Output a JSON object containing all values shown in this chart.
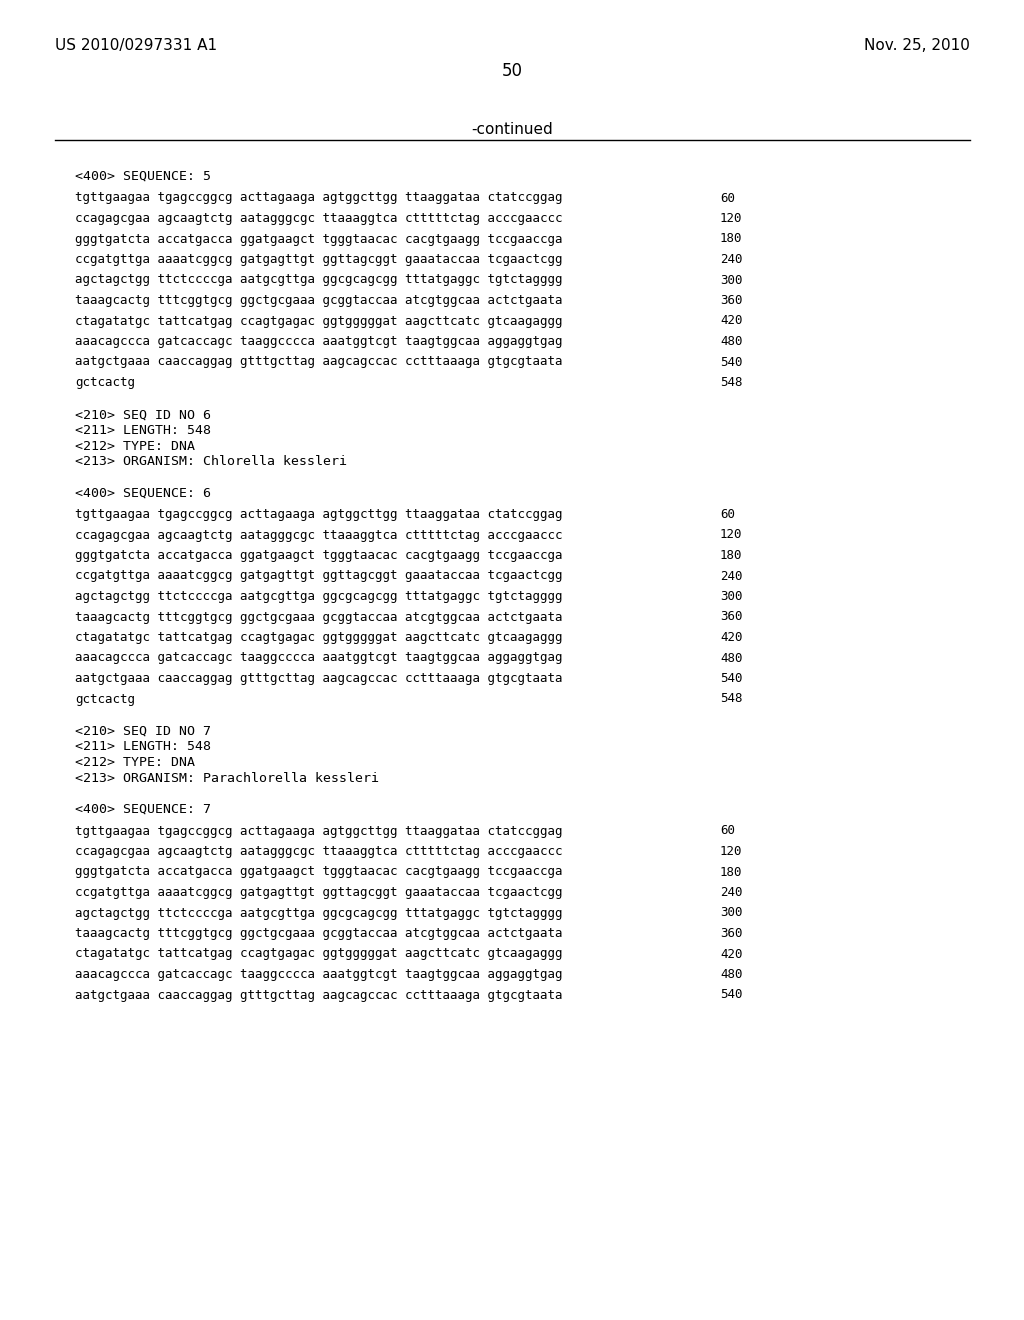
{
  "header_left": "US 2010/0297331 A1",
  "header_right": "Nov. 25, 2010",
  "page_number": "50",
  "continued_text": "-continued",
  "background_color": "#ffffff",
  "text_color": "#000000",
  "sections": [
    {
      "type": "sequence_label",
      "text": "<400> SEQUENCE: 5"
    },
    {
      "type": "sequence_data",
      "lines": [
        {
          "seq": "tgttgaagaa tgagccggcg acttagaaga agtggcttgg ttaaggataa ctatccggag",
          "num": "60"
        },
        {
          "seq": "ccagagcgaa agcaagtctg aatagggcgc ttaaaggtca ctttttctag acccgaaccc",
          "num": "120"
        },
        {
          "seq": "gggtgatcta accatgacca ggatgaagct tgggtaacac cacgtgaagg tccgaaccga",
          "num": "180"
        },
        {
          "seq": "ccgatgttga aaaatcggcg gatgagttgt ggttagcggt gaaataccaa tcgaactcgg",
          "num": "240"
        },
        {
          "seq": "agctagctgg ttctccccga aatgcgttga ggcgcagcgg tttatgaggc tgtctagggg",
          "num": "300"
        },
        {
          "seq": "taaagcactg tttcggtgcg ggctgcgaaa gcggtaccaa atcgtggcaa actctgaata",
          "num": "360"
        },
        {
          "seq": "ctagatatgc tattcatgag ccagtgagac ggtgggggat aagcttcatc gtcaagaggg",
          "num": "420"
        },
        {
          "seq": "aaacagccca gatcaccagc taaggcccca aaatggtcgt taagtggcaa aggaggtgag",
          "num": "480"
        },
        {
          "seq": "aatgctgaaa caaccaggag gtttgcttag aagcagccac cctttaaaga gtgcgtaata",
          "num": "540"
        },
        {
          "seq": "gctcactg",
          "num": "548"
        }
      ]
    },
    {
      "type": "metadata",
      "lines": [
        "<210> SEQ ID NO 6",
        "<211> LENGTH: 548",
        "<212> TYPE: DNA",
        "<213> ORGANISM: Chlorella kessleri"
      ]
    },
    {
      "type": "sequence_label",
      "text": "<400> SEQUENCE: 6"
    },
    {
      "type": "sequence_data",
      "lines": [
        {
          "seq": "tgttgaagaa tgagccggcg acttagaaga agtggcttgg ttaaggataa ctatccggag",
          "num": "60"
        },
        {
          "seq": "ccagagcgaa agcaagtctg aatagggcgc ttaaaggtca ctttttctag acccgaaccc",
          "num": "120"
        },
        {
          "seq": "gggtgatcta accatgacca ggatgaagct tgggtaacac cacgtgaagg tccgaaccga",
          "num": "180"
        },
        {
          "seq": "ccgatgttga aaaatcggcg gatgagttgt ggttagcggt gaaataccaa tcgaactcgg",
          "num": "240"
        },
        {
          "seq": "agctagctgg ttctccccga aatgcgttga ggcgcagcgg tttatgaggc tgtctagggg",
          "num": "300"
        },
        {
          "seq": "taaagcactg tttcggtgcg ggctgcgaaa gcggtaccaa atcgtggcaa actctgaata",
          "num": "360"
        },
        {
          "seq": "ctagatatgc tattcatgag ccagtgagac ggtgggggat aagcttcatc gtcaagaggg",
          "num": "420"
        },
        {
          "seq": "aaacagccca gatcaccagc taaggcccca aaatggtcgt taagtggcaa aggaggtgag",
          "num": "480"
        },
        {
          "seq": "aatgctgaaa caaccaggag gtttgcttag aagcagccac cctttaaaga gtgcgtaata",
          "num": "540"
        },
        {
          "seq": "gctcactg",
          "num": "548"
        }
      ]
    },
    {
      "type": "metadata",
      "lines": [
        "<210> SEQ ID NO 7",
        "<211> LENGTH: 548",
        "<212> TYPE: DNA",
        "<213> ORGANISM: Parachlorella kessleri"
      ]
    },
    {
      "type": "sequence_label",
      "text": "<400> SEQUENCE: 7"
    },
    {
      "type": "sequence_data",
      "lines": [
        {
          "seq": "tgttgaagaa tgagccggcg acttagaaga agtggcttgg ttaaggataa ctatccggag",
          "num": "60"
        },
        {
          "seq": "ccagagcgaa agcaagtctg aatagggcgc ttaaaggtca ctttttctag acccgaaccc",
          "num": "120"
        },
        {
          "seq": "gggtgatcta accatgacca ggatgaagct tgggtaacac cacgtgaagg tccgaaccga",
          "num": "180"
        },
        {
          "seq": "ccgatgttga aaaatcggcg gatgagttgt ggttagcggt gaaataccaa tcgaactcgg",
          "num": "240"
        },
        {
          "seq": "agctagctgg ttctccccga aatgcgttga ggcgcagcgg tttatgaggc tgtctagggg",
          "num": "300"
        },
        {
          "seq": "taaagcactg tttcggtgcg ggctgcgaaa gcggtaccaa atcgtggcaa actctgaata",
          "num": "360"
        },
        {
          "seq": "ctagatatgc tattcatgag ccagtgagac ggtgggggat aagcttcatc gtcaagaggg",
          "num": "420"
        },
        {
          "seq": "aaacagccca gatcaccagc taaggcccca aaatggtcgt taagtggcaa aggaggtgag",
          "num": "480"
        },
        {
          "seq": "aatgctgaaa caaccaggag gtttgcttag aagcagccac cctttaaaga gtgcgtaata",
          "num": "540"
        }
      ]
    }
  ]
}
